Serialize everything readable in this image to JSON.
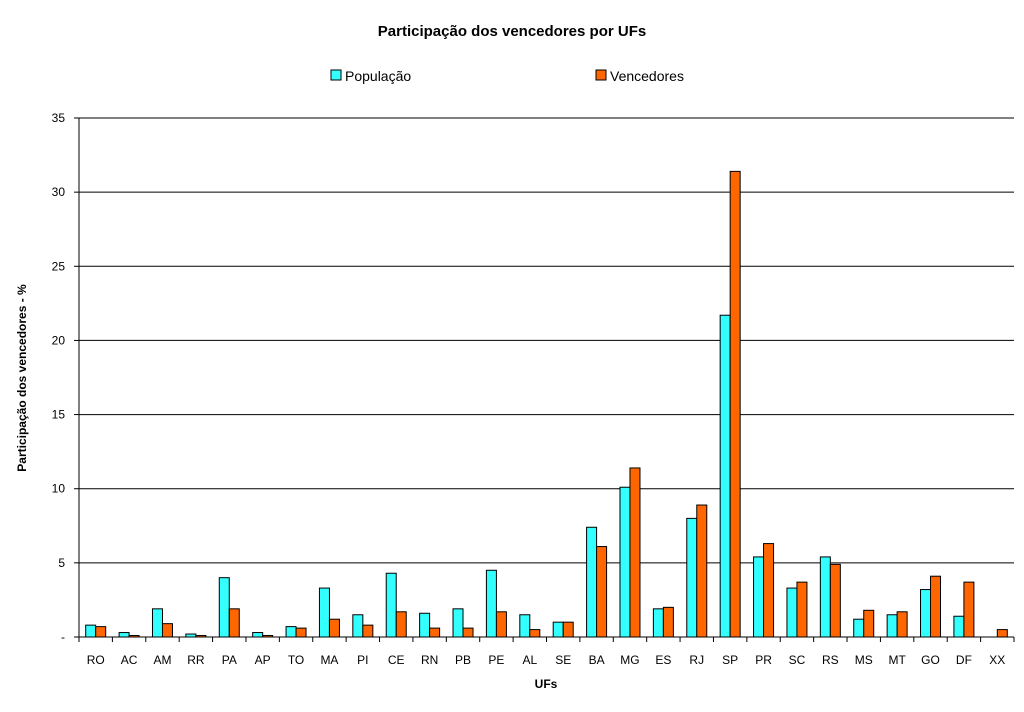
{
  "chart_data": {
    "type": "bar",
    "title": "Participação dos vencedores por UFs",
    "xlabel": "UFs",
    "ylabel": "Participação dos vencedores - %",
    "ylim": [
      0,
      35
    ],
    "yticks": [
      0,
      5,
      10,
      15,
      20,
      25,
      30,
      35
    ],
    "grid": true,
    "legend_position": "top",
    "categories": [
      "RO",
      "AC",
      "AM",
      "RR",
      "PA",
      "AP",
      "TO",
      "MA",
      "PI",
      "CE",
      "RN",
      "PB",
      "PE",
      "AL",
      "SE",
      "BA",
      "MG",
      "ES",
      "RJ",
      "SP",
      "PR",
      "SC",
      "RS",
      "MS",
      "MT",
      "GO",
      "DF",
      "XX"
    ],
    "series": [
      {
        "name": "População",
        "color": "#33ffff",
        "values": [
          0.8,
          0.3,
          1.9,
          0.2,
          4.0,
          0.3,
          0.7,
          3.3,
          1.5,
          4.3,
          1.6,
          1.9,
          4.5,
          1.5,
          1.0,
          7.4,
          10.1,
          1.9,
          8.0,
          21.7,
          5.4,
          3.3,
          5.4,
          1.2,
          1.5,
          3.2,
          1.4,
          0
        ]
      },
      {
        "name": "Vencedores",
        "color": "#ff6600",
        "values": [
          0.7,
          0.1,
          0.9,
          0.1,
          1.9,
          0.1,
          0.6,
          1.2,
          0.8,
          1.7,
          0.6,
          0.6,
          1.7,
          0.5,
          1.0,
          6.1,
          11.4,
          2.0,
          8.9,
          31.4,
          6.3,
          3.7,
          4.9,
          1.8,
          1.7,
          4.1,
          3.7,
          0.5
        ]
      }
    ]
  }
}
